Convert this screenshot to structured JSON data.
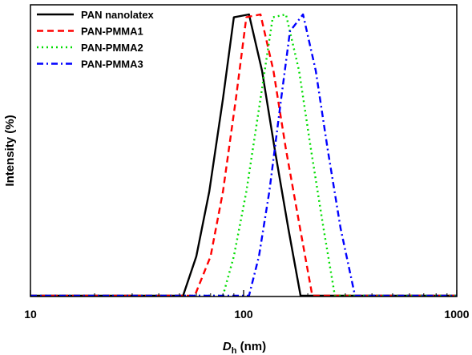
{
  "chart_data": {
    "type": "line",
    "xlabel_symbol": "D",
    "xlabel_subscript": "h",
    "xlabel_unit": " (nm)",
    "ylabel": "Intensity (%)",
    "xscale": "log",
    "xlim": [
      10,
      1000
    ],
    "ylim": [
      0,
      100
    ],
    "x_ticks": [
      10,
      100,
      1000
    ],
    "x_tick_labels": [
      "10",
      "100",
      "1000"
    ],
    "y_ticks_shown": false,
    "grid": false,
    "legend_position": "top-left",
    "series": [
      {
        "name": "PAN nanolatex",
        "color": "#000000",
        "dash": "solid",
        "points": [
          [
            10,
            0
          ],
          [
            52,
            0
          ],
          [
            60,
            14
          ],
          [
            69,
            37
          ],
          [
            80,
            70
          ],
          [
            90,
            99
          ],
          [
            106,
            100
          ],
          [
            122,
            80
          ],
          [
            140,
            52
          ],
          [
            162,
            24
          ],
          [
            185,
            0
          ],
          [
            225,
            0
          ],
          [
            1000,
            0
          ]
        ]
      },
      {
        "name": "PAN-PMMA1",
        "color": "#ff0000",
        "dash": "dash",
        "points": [
          [
            10,
            0
          ],
          [
            59,
            0
          ],
          [
            70,
            14
          ],
          [
            80,
            37
          ],
          [
            92,
            70
          ],
          [
            103,
            99
          ],
          [
            120,
            100
          ],
          [
            138,
            80
          ],
          [
            158,
            52
          ],
          [
            184,
            24
          ],
          [
            210,
            0
          ],
          [
            255,
            0
          ],
          [
            1000,
            0
          ]
        ]
      },
      {
        "name": "PAN-PMMA2",
        "color": "#00dd00",
        "dash": "dot",
        "points": [
          [
            10,
            0
          ],
          [
            80,
            0
          ],
          [
            90,
            14
          ],
          [
            103,
            37
          ],
          [
            120,
            70
          ],
          [
            137,
            99
          ],
          [
            158,
            100
          ],
          [
            182,
            80
          ],
          [
            207,
            52
          ],
          [
            237,
            24
          ],
          [
            268,
            0
          ],
          [
            1000,
            0
          ]
        ]
      },
      {
        "name": "PAN-PMMA3",
        "color": "#0000ff",
        "dash": "dashdot",
        "points": [
          [
            10,
            0
          ],
          [
            106,
            0
          ],
          [
            118,
            14
          ],
          [
            132,
            37
          ],
          [
            150,
            70
          ],
          [
            165,
            94
          ],
          [
            190,
            100
          ],
          [
            218,
            80
          ],
          [
            248,
            52
          ],
          [
            285,
            24
          ],
          [
            333,
            0
          ],
          [
            1000,
            0
          ]
        ]
      }
    ]
  }
}
